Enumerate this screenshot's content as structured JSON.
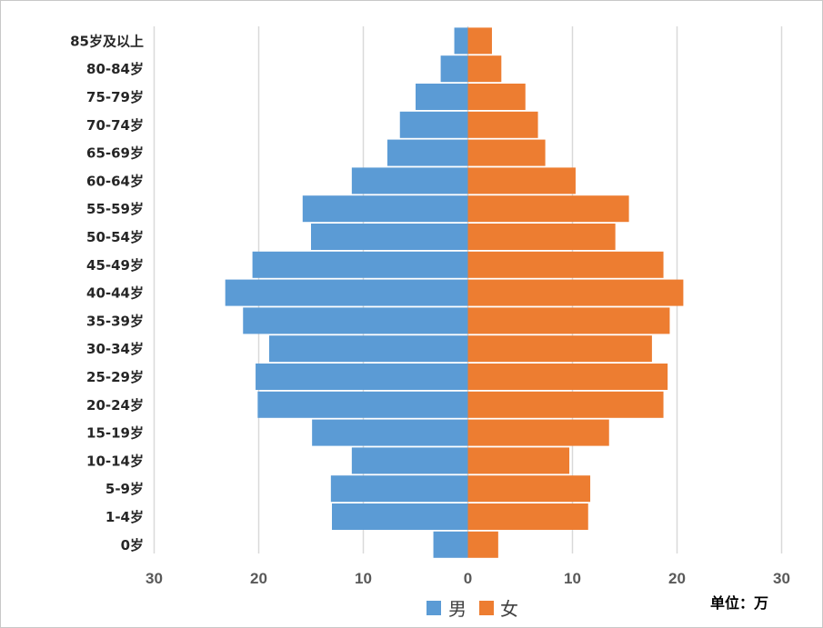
{
  "chart_data": {
    "type": "bar",
    "orientation": "horizontal",
    "subtype": "population-pyramid",
    "categories": [
      "0岁",
      "1-4岁",
      "5-9岁",
      "10-14岁",
      "15-19岁",
      "20-24岁",
      "25-29岁",
      "30-34岁",
      "35-39岁",
      "40-44岁",
      "45-49岁",
      "50-54岁",
      "55-59岁",
      "60-64岁",
      "65-69岁",
      "70-74岁",
      "75-79岁",
      "80-84岁",
      "85岁及以上"
    ],
    "series": [
      {
        "name": "男",
        "color": "#5B9BD5",
        "side": "left",
        "values": [
          3.3,
          13.0,
          13.1,
          11.1,
          14.9,
          20.1,
          20.3,
          19.0,
          21.5,
          23.2,
          20.6,
          15.0,
          15.8,
          11.1,
          7.7,
          6.5,
          5.0,
          2.6,
          1.3
        ]
      },
      {
        "name": "女",
        "color": "#ED7D31",
        "side": "right",
        "values": [
          2.9,
          11.5,
          11.7,
          9.7,
          13.5,
          18.7,
          19.1,
          17.6,
          19.3,
          20.6,
          18.7,
          14.1,
          15.4,
          10.3,
          7.4,
          6.7,
          5.5,
          3.2,
          2.3
        ]
      }
    ],
    "xlim": [
      -30,
      30
    ],
    "xticks": [
      -30,
      -20,
      -10,
      0,
      10,
      20,
      30
    ],
    "xtick_labels": [
      "30",
      "20",
      "10",
      "0",
      "10",
      "20",
      "30"
    ],
    "grid": true,
    "legend_position": "bottom-center",
    "unit_label": "单位：万"
  }
}
